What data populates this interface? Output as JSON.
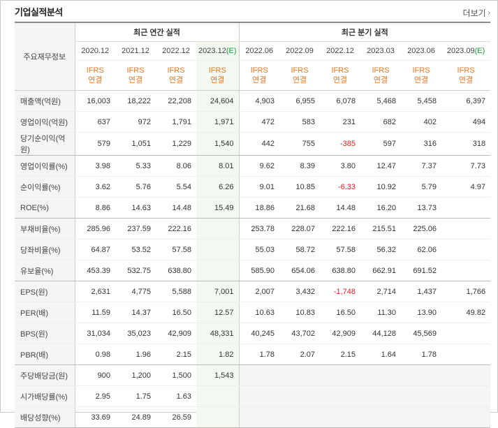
{
  "title": "기업실적분석",
  "more_label": "더보기",
  "header": {
    "row_label": "주요재무정보",
    "annual_label": "최근 연간 실적",
    "quarterly_label": "최근 분기 실적",
    "annual_years": [
      "2020.12",
      "2021.12",
      "2022.12",
      "2023.12"
    ],
    "annual_est_suffix": "(E)",
    "quarter_years": [
      "2022.06",
      "2022.09",
      "2022.12",
      "2023.03",
      "2023.06",
      "2023.09"
    ],
    "quarter_est_suffix": "(E)",
    "ifrs": "IFRS",
    "consolidated": "연결"
  },
  "rows": [
    {
      "label": "매출액(억원)",
      "values": [
        "16,003",
        "18,222",
        "22,208",
        "24,604",
        "4,903",
        "6,955",
        "6,078",
        "5,468",
        "5,458",
        "6,397"
      ]
    },
    {
      "label": "영업이익(억원)",
      "values": [
        "637",
        "972",
        "1,791",
        "1,971",
        "472",
        "583",
        "231",
        "682",
        "402",
        "494"
      ]
    },
    {
      "label": "당기순이익(억원)",
      "values": [
        "579",
        "1,051",
        "1,229",
        "1,540",
        "442",
        "755",
        "-385",
        "597",
        "316",
        "318"
      ]
    },
    {
      "label": "영업이익률(%)",
      "values": [
        "3.98",
        "5.33",
        "8.06",
        "8.01",
        "9.62",
        "8.39",
        "3.80",
        "12.47",
        "7.37",
        "7.73"
      ]
    },
    {
      "label": "순이익률(%)",
      "values": [
        "3.62",
        "5.76",
        "5.54",
        "6.26",
        "9.01",
        "10.85",
        "-6.33",
        "10.92",
        "5.79",
        "4.97"
      ]
    },
    {
      "label": "ROE(%)",
      "values": [
        "8.86",
        "14.63",
        "14.48",
        "15.49",
        "18.86",
        "21.68",
        "14.48",
        "16.20",
        "13.73",
        ""
      ]
    },
    {
      "label": "부채비율(%)",
      "values": [
        "285.96",
        "237.59",
        "222.16",
        "",
        "253.78",
        "228.07",
        "222.16",
        "215.51",
        "225.06",
        ""
      ]
    },
    {
      "label": "당좌비율(%)",
      "values": [
        "64.87",
        "53.52",
        "57.58",
        "",
        "55.03",
        "58.72",
        "57.58",
        "56.32",
        "62.06",
        ""
      ]
    },
    {
      "label": "유보율(%)",
      "values": [
        "453.39",
        "532.75",
        "638.80",
        "",
        "585.90",
        "654.06",
        "638.80",
        "662.91",
        "691.52",
        ""
      ]
    },
    {
      "label": "EPS(원)",
      "values": [
        "2,631",
        "4,775",
        "5,588",
        "7,001",
        "2,007",
        "3,432",
        "-1,748",
        "2,714",
        "1,437",
        "1,766"
      ]
    },
    {
      "label": "PER(배)",
      "values": [
        "11.59",
        "14.37",
        "16.50",
        "12.57",
        "10.63",
        "10.83",
        "16.50",
        "11.30",
        "13.90",
        "49.82"
      ]
    },
    {
      "label": "BPS(원)",
      "values": [
        "31,034",
        "35,023",
        "42,909",
        "48,331",
        "40,245",
        "43,702",
        "42,909",
        "44,128",
        "45,569",
        ""
      ]
    },
    {
      "label": "PBR(배)",
      "values": [
        "0.98",
        "1.96",
        "2.15",
        "1.82",
        "1.78",
        "2.07",
        "2.15",
        "1.64",
        "1.78",
        ""
      ]
    },
    {
      "label": "주당배당금(원)",
      "values": [
        "900",
        "1,200",
        "1,500",
        "1,543",
        "",
        "",
        "",
        "",
        "",
        ""
      ]
    },
    {
      "label": "시가배당률(%)",
      "values": [
        "2.95",
        "1.75",
        "1.63",
        "",
        "",
        "",
        "",
        "",
        "",
        ""
      ]
    },
    {
      "label": "배당성향(%)",
      "values": [
        "33.69",
        "24.89",
        "26.59",
        "",
        "",
        "",
        "",
        "",
        "",
        ""
      ]
    }
  ]
}
